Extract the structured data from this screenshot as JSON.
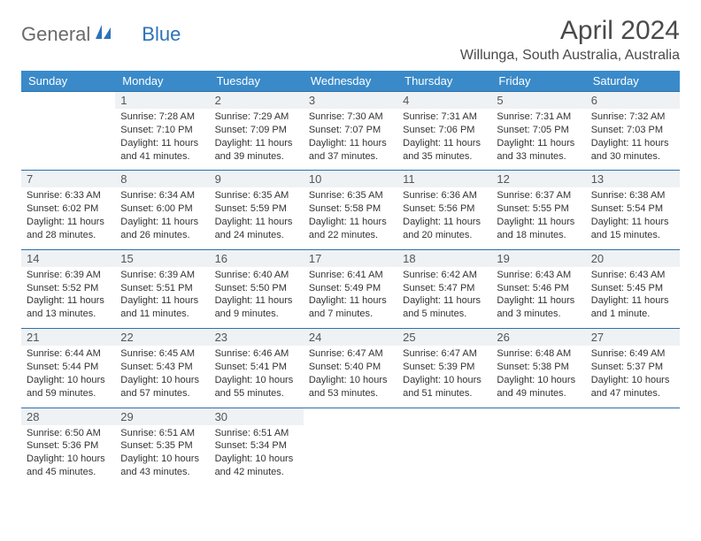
{
  "brand": {
    "part1": "General",
    "part2": "Blue"
  },
  "title": "April 2024",
  "location": "Willunga, South Australia, Australia",
  "colors": {
    "header_bg": "#3a8ac9",
    "header_text": "#ffffff",
    "daynum_bg": "#eef2f5",
    "daynum_border": "#2f6fa8",
    "text": "#333333"
  },
  "font": {
    "family": "Arial",
    "title_size_pt": 30,
    "location_size_pt": 16,
    "dayhead_size_pt": 13,
    "body_size_pt": 11
  },
  "day_names": [
    "Sunday",
    "Monday",
    "Tuesday",
    "Wednesday",
    "Thursday",
    "Friday",
    "Saturday"
  ],
  "weeks": [
    [
      null,
      {
        "n": "1",
        "sr": "Sunrise: 7:28 AM",
        "ss": "Sunset: 7:10 PM",
        "d1": "Daylight: 11 hours",
        "d2": "and 41 minutes."
      },
      {
        "n": "2",
        "sr": "Sunrise: 7:29 AM",
        "ss": "Sunset: 7:09 PM",
        "d1": "Daylight: 11 hours",
        "d2": "and 39 minutes."
      },
      {
        "n": "3",
        "sr": "Sunrise: 7:30 AM",
        "ss": "Sunset: 7:07 PM",
        "d1": "Daylight: 11 hours",
        "d2": "and 37 minutes."
      },
      {
        "n": "4",
        "sr": "Sunrise: 7:31 AM",
        "ss": "Sunset: 7:06 PM",
        "d1": "Daylight: 11 hours",
        "d2": "and 35 minutes."
      },
      {
        "n": "5",
        "sr": "Sunrise: 7:31 AM",
        "ss": "Sunset: 7:05 PM",
        "d1": "Daylight: 11 hours",
        "d2": "and 33 minutes."
      },
      {
        "n": "6",
        "sr": "Sunrise: 7:32 AM",
        "ss": "Sunset: 7:03 PM",
        "d1": "Daylight: 11 hours",
        "d2": "and 30 minutes."
      }
    ],
    [
      {
        "n": "7",
        "sr": "Sunrise: 6:33 AM",
        "ss": "Sunset: 6:02 PM",
        "d1": "Daylight: 11 hours",
        "d2": "and 28 minutes."
      },
      {
        "n": "8",
        "sr": "Sunrise: 6:34 AM",
        "ss": "Sunset: 6:00 PM",
        "d1": "Daylight: 11 hours",
        "d2": "and 26 minutes."
      },
      {
        "n": "9",
        "sr": "Sunrise: 6:35 AM",
        "ss": "Sunset: 5:59 PM",
        "d1": "Daylight: 11 hours",
        "d2": "and 24 minutes."
      },
      {
        "n": "10",
        "sr": "Sunrise: 6:35 AM",
        "ss": "Sunset: 5:58 PM",
        "d1": "Daylight: 11 hours",
        "d2": "and 22 minutes."
      },
      {
        "n": "11",
        "sr": "Sunrise: 6:36 AM",
        "ss": "Sunset: 5:56 PM",
        "d1": "Daylight: 11 hours",
        "d2": "and 20 minutes."
      },
      {
        "n": "12",
        "sr": "Sunrise: 6:37 AM",
        "ss": "Sunset: 5:55 PM",
        "d1": "Daylight: 11 hours",
        "d2": "and 18 minutes."
      },
      {
        "n": "13",
        "sr": "Sunrise: 6:38 AM",
        "ss": "Sunset: 5:54 PM",
        "d1": "Daylight: 11 hours",
        "d2": "and 15 minutes."
      }
    ],
    [
      {
        "n": "14",
        "sr": "Sunrise: 6:39 AM",
        "ss": "Sunset: 5:52 PM",
        "d1": "Daylight: 11 hours",
        "d2": "and 13 minutes."
      },
      {
        "n": "15",
        "sr": "Sunrise: 6:39 AM",
        "ss": "Sunset: 5:51 PM",
        "d1": "Daylight: 11 hours",
        "d2": "and 11 minutes."
      },
      {
        "n": "16",
        "sr": "Sunrise: 6:40 AM",
        "ss": "Sunset: 5:50 PM",
        "d1": "Daylight: 11 hours",
        "d2": "and 9 minutes."
      },
      {
        "n": "17",
        "sr": "Sunrise: 6:41 AM",
        "ss": "Sunset: 5:49 PM",
        "d1": "Daylight: 11 hours",
        "d2": "and 7 minutes."
      },
      {
        "n": "18",
        "sr": "Sunrise: 6:42 AM",
        "ss": "Sunset: 5:47 PM",
        "d1": "Daylight: 11 hours",
        "d2": "and 5 minutes."
      },
      {
        "n": "19",
        "sr": "Sunrise: 6:43 AM",
        "ss": "Sunset: 5:46 PM",
        "d1": "Daylight: 11 hours",
        "d2": "and 3 minutes."
      },
      {
        "n": "20",
        "sr": "Sunrise: 6:43 AM",
        "ss": "Sunset: 5:45 PM",
        "d1": "Daylight: 11 hours",
        "d2": "and 1 minute."
      }
    ],
    [
      {
        "n": "21",
        "sr": "Sunrise: 6:44 AM",
        "ss": "Sunset: 5:44 PM",
        "d1": "Daylight: 10 hours",
        "d2": "and 59 minutes."
      },
      {
        "n": "22",
        "sr": "Sunrise: 6:45 AM",
        "ss": "Sunset: 5:43 PM",
        "d1": "Daylight: 10 hours",
        "d2": "and 57 minutes."
      },
      {
        "n": "23",
        "sr": "Sunrise: 6:46 AM",
        "ss": "Sunset: 5:41 PM",
        "d1": "Daylight: 10 hours",
        "d2": "and 55 minutes."
      },
      {
        "n": "24",
        "sr": "Sunrise: 6:47 AM",
        "ss": "Sunset: 5:40 PM",
        "d1": "Daylight: 10 hours",
        "d2": "and 53 minutes."
      },
      {
        "n": "25",
        "sr": "Sunrise: 6:47 AM",
        "ss": "Sunset: 5:39 PM",
        "d1": "Daylight: 10 hours",
        "d2": "and 51 minutes."
      },
      {
        "n": "26",
        "sr": "Sunrise: 6:48 AM",
        "ss": "Sunset: 5:38 PM",
        "d1": "Daylight: 10 hours",
        "d2": "and 49 minutes."
      },
      {
        "n": "27",
        "sr": "Sunrise: 6:49 AM",
        "ss": "Sunset: 5:37 PM",
        "d1": "Daylight: 10 hours",
        "d2": "and 47 minutes."
      }
    ],
    [
      {
        "n": "28",
        "sr": "Sunrise: 6:50 AM",
        "ss": "Sunset: 5:36 PM",
        "d1": "Daylight: 10 hours",
        "d2": "and 45 minutes."
      },
      {
        "n": "29",
        "sr": "Sunrise: 6:51 AM",
        "ss": "Sunset: 5:35 PM",
        "d1": "Daylight: 10 hours",
        "d2": "and 43 minutes."
      },
      {
        "n": "30",
        "sr": "Sunrise: 6:51 AM",
        "ss": "Sunset: 5:34 PM",
        "d1": "Daylight: 10 hours",
        "d2": "and 42 minutes."
      },
      null,
      null,
      null,
      null
    ]
  ]
}
